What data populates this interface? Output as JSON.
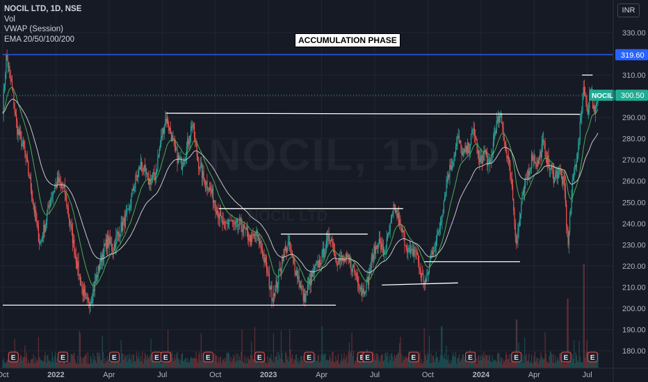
{
  "legend": {
    "symbol": "NOCIL LTD, 1D, NSE",
    "indicators": [
      "Vol",
      "VWAP (Session)",
      "EMA 20/50/100/200"
    ]
  },
  "currency": "INR",
  "annotation": "ACCUMULATION PHASE",
  "watermark": {
    "main": "NOCIL, 1D",
    "sub": "NOCIL LTD"
  },
  "colors": {
    "background": "#161a25",
    "up": "#26a69a",
    "down": "#ef5350",
    "resistance_line": "#2962ff",
    "price_badge": "#22ab94",
    "level_lines": "#ffffff",
    "ema_fast": "#4caf50",
    "ema_slow": "#c9c9c9"
  },
  "chart_data": {
    "type": "candlestick",
    "y_axis": {
      "min": 175,
      "max": 337,
      "ticks": [
        "330.00",
        "320.00",
        "310.00",
        "300.00",
        "290.00",
        "280.00",
        "270.00",
        "260.00",
        "250.00",
        "240.00",
        "230.00",
        "220.00",
        "210.00",
        "200.00",
        "190.00",
        "180.00"
      ]
    },
    "x_axis": {
      "labels": [
        "Oct",
        "2022",
        "Apr",
        "Jul",
        "Oct",
        "2023",
        "Apr",
        "Jul",
        "Oct",
        "2024",
        "Apr",
        "Jul"
      ],
      "range_months": [
        0,
        33.6
      ],
      "label_months": [
        0,
        3,
        6,
        9,
        12,
        15,
        18,
        21,
        24,
        27,
        30,
        33
      ]
    },
    "price_path": [
      [
        0,
        295
      ],
      [
        0.2,
        319
      ],
      [
        0.5,
        305
      ],
      [
        0.8,
        285
      ],
      [
        1.2,
        275
      ],
      [
        1.5,
        262
      ],
      [
        1.8,
        245
      ],
      [
        2.1,
        230
      ],
      [
        2.4,
        240
      ],
      [
        2.7,
        252
      ],
      [
        3.1,
        260
      ],
      [
        3.5,
        255
      ],
      [
        3.8,
        240
      ],
      [
        4.1,
        225
      ],
      [
        4.4,
        212
      ],
      [
        4.7,
        202
      ],
      [
        5.0,
        205
      ],
      [
        5.3,
        215
      ],
      [
        5.6,
        225
      ],
      [
        5.9,
        232
      ],
      [
        6.2,
        228
      ],
      [
        6.5,
        235
      ],
      [
        6.8,
        240
      ],
      [
        7.1,
        245
      ],
      [
        7.4,
        258
      ],
      [
        7.8,
        268
      ],
      [
        8.2,
        260
      ],
      [
        8.6,
        262
      ],
      [
        8.9,
        278
      ],
      [
        9.2,
        290
      ],
      [
        9.5,
        282
      ],
      [
        9.8,
        272
      ],
      [
        10.1,
        268
      ],
      [
        10.4,
        276
      ],
      [
        10.7,
        288
      ],
      [
        11.0,
        270
      ],
      [
        11.3,
        262
      ],
      [
        11.6,
        258
      ],
      [
        11.9,
        252
      ],
      [
        12.2,
        244
      ],
      [
        12.5,
        238
      ],
      [
        12.8,
        242
      ],
      [
        13.1,
        238
      ],
      [
        13.4,
        240
      ],
      [
        13.7,
        236
      ],
      [
        14.0,
        232
      ],
      [
        14.3,
        235
      ],
      [
        14.6,
        229
      ],
      [
        14.9,
        218
      ],
      [
        15.2,
        206
      ],
      [
        15.5,
        212
      ],
      [
        15.8,
        225
      ],
      [
        16.1,
        230
      ],
      [
        16.4,
        222
      ],
      [
        16.7,
        214
      ],
      [
        17.0,
        204
      ],
      [
        17.3,
        212
      ],
      [
        17.6,
        218
      ],
      [
        17.9,
        222
      ],
      [
        18.2,
        228
      ],
      [
        18.5,
        235
      ],
      [
        18.8,
        224
      ],
      [
        19.1,
        222
      ],
      [
        19.4,
        223
      ],
      [
        19.7,
        220
      ],
      [
        20.0,
        215
      ],
      [
        20.3,
        208
      ],
      [
        20.6,
        213
      ],
      [
        20.9,
        225
      ],
      [
        21.2,
        232
      ],
      [
        21.5,
        226
      ],
      [
        21.8,
        235
      ],
      [
        22.1,
        248
      ],
      [
        22.4,
        240
      ],
      [
        22.7,
        232
      ],
      [
        23.0,
        225
      ],
      [
        23.3,
        228
      ],
      [
        23.6,
        216
      ],
      [
        23.9,
        212
      ],
      [
        24.2,
        226
      ],
      [
        24.5,
        232
      ],
      [
        24.8,
        245
      ],
      [
        25.1,
        262
      ],
      [
        25.4,
        270
      ],
      [
        25.7,
        280
      ],
      [
        26.0,
        272
      ],
      [
        26.3,
        276
      ],
      [
        26.6,
        285
      ],
      [
        26.9,
        268
      ],
      [
        27.2,
        274
      ],
      [
        27.5,
        266
      ],
      [
        27.8,
        285
      ],
      [
        28.1,
        290
      ],
      [
        28.4,
        276
      ],
      [
        28.7,
        262
      ],
      [
        29.0,
        230
      ],
      [
        29.3,
        250
      ],
      [
        29.6,
        262
      ],
      [
        29.9,
        272
      ],
      [
        30.2,
        268
      ],
      [
        30.5,
        278
      ],
      [
        30.8,
        268
      ],
      [
        31.1,
        262
      ],
      [
        31.4,
        265
      ],
      [
        31.7,
        258
      ],
      [
        31.9,
        230
      ],
      [
        32.2,
        262
      ],
      [
        32.5,
        276
      ],
      [
        32.8,
        306
      ],
      [
        33.0,
        292
      ],
      [
        33.2,
        306
      ],
      [
        33.4,
        290
      ],
      [
        33.6,
        300.5
      ]
    ],
    "levels": [
      {
        "name": "resistance",
        "price": 319.6,
        "x0": 0,
        "x1": 33.6
      },
      {
        "name": "top",
        "price": 292,
        "x0": 9.2,
        "x1": 32.6,
        "end_price": 291.5
      },
      {
        "name": "mid-1",
        "price": 247,
        "x0": 12.2,
        "x1": 22.6
      },
      {
        "name": "mid-2",
        "price": 235,
        "x0": 15.7,
        "x1": 20.6
      },
      {
        "name": "bottom",
        "price": 201.5,
        "x0": 0,
        "x1": 18.8
      },
      {
        "name": "support-1",
        "price": 222,
        "x0": 23.8,
        "x1": 29.2
      },
      {
        "name": "support-2",
        "price": 211,
        "x0": 21.4,
        "x1": 25.7,
        "end_price": 212
      },
      {
        "name": "recent-high",
        "price": 310,
        "x0": 32.7,
        "x1": 33.3
      }
    ],
    "last_price": {
      "label": "NOCIL",
      "value": "300.50"
    },
    "resistance_label": "319.60",
    "earnings_marks": [
      0.6,
      3.4,
      6.3,
      8.7,
      9.2,
      11.6,
      14.5,
      17.3,
      20.3,
      20.6,
      23.2,
      26.4,
      29.0,
      31.8,
      33.3
    ],
    "earnings_label": "E"
  }
}
